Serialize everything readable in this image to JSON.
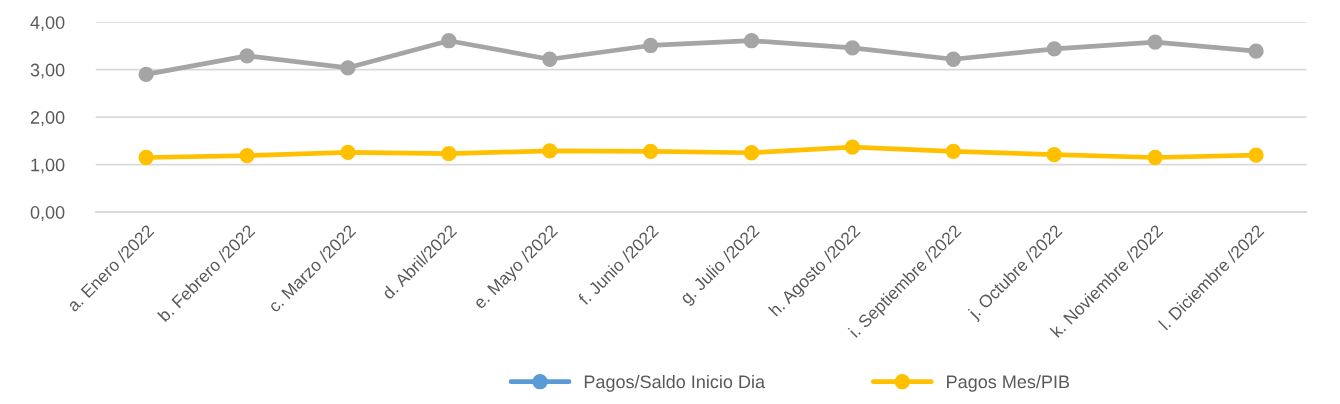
{
  "chart_data": {
    "type": "line",
    "categories": [
      "a. Enero /2022",
      "b. Febrero /2022",
      "c. Marzo /2022",
      "d. Abril/2022",
      "e. Mayo /2022",
      "f. Junio /2022",
      "g. Julio /2022",
      "h. Agosto /2022",
      "i. Septiembre /2022",
      "j. Octubre /2022",
      "k. Noviembre /2022",
      "l. Diciembre /2022"
    ],
    "series": [
      {
        "name": "Pagos/Saldo Inicio Dia",
        "color": "#5b9bd5",
        "values": [
          null,
          null,
          null,
          null,
          null,
          null,
          null,
          null,
          null,
          null,
          null,
          null
        ]
      },
      {
        "name": "Pagos Mes/PIB",
        "color": "#ffc000",
        "values": [
          1.15,
          1.19,
          1.26,
          1.23,
          1.29,
          1.28,
          1.25,
          1.37,
          1.28,
          1.21,
          1.15,
          1.2
        ]
      },
      {
        "color": "#a5a5a5",
        "values": [
          2.9,
          3.29,
          3.04,
          3.61,
          3.22,
          3.51,
          3.61,
          3.46,
          3.22,
          3.44,
          3.58,
          3.39
        ]
      }
    ],
    "ylim": [
      0,
      4
    ],
    "yticks": [
      {
        "value": 0,
        "label": "0,00"
      },
      {
        "value": 1,
        "label": "1,00"
      },
      {
        "value": 2,
        "label": "2,00"
      },
      {
        "value": 3,
        "label": "3,00"
      },
      {
        "value": 4,
        "label": "4,00"
      }
    ],
    "grid": "y",
    "legend": "bottom",
    "marker": "circle",
    "line_style": "solid"
  }
}
